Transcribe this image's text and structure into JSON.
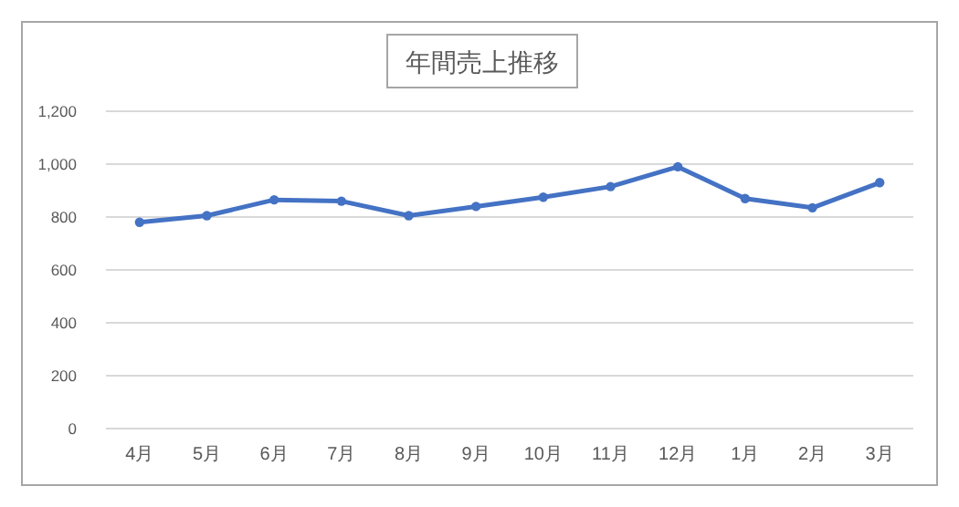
{
  "chart_data": {
    "type": "line",
    "title": "年間売上推移",
    "categories": [
      "4月",
      "5月",
      "6月",
      "7月",
      "8月",
      "9月",
      "10月",
      "11月",
      "12月",
      "1月",
      "2月",
      "3月"
    ],
    "series": [
      {
        "color": "#4472c4",
        "values": [
          780,
          805,
          865,
          860,
          805,
          840,
          875,
          915,
          990,
          870,
          835,
          930
        ]
      }
    ],
    "ylim": [
      0,
      1200
    ],
    "yticks": [
      0,
      {
        "value": 200,
        "label": "200"
      },
      {
        "value": 400,
        "label": "400"
      },
      {
        "value": 600,
        "label": "600"
      },
      {
        "value": 800,
        "label": "800"
      },
      {
        "value": 1000,
        "label": "1,000"
      },
      {
        "value": 1200,
        "label": "1,200"
      }
    ],
    "grid": "y",
    "marker": "circle"
  }
}
